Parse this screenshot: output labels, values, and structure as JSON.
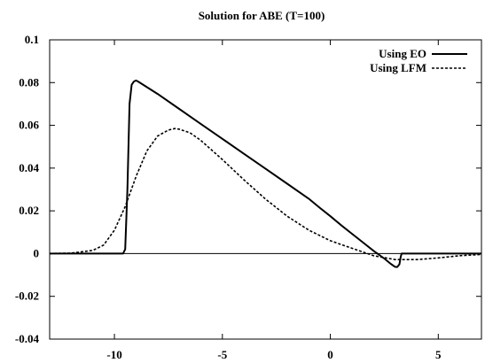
{
  "chart_data": {
    "type": "line",
    "title": "Solution for ABE (T=100)",
    "xlabel": "",
    "ylabel": "",
    "xlim": [
      -13,
      7
    ],
    "ylim": [
      -0.04,
      0.1
    ],
    "grid": false,
    "legend_position": "top-right",
    "x_ticks": [
      -10,
      -5,
      0,
      5
    ],
    "x_tick_labels": [
      "-10",
      "-5",
      "0",
      "5"
    ],
    "y_ticks": [
      -0.04,
      -0.02,
      0,
      0.02,
      0.04,
      0.06,
      0.08,
      0.1
    ],
    "y_tick_labels": [
      "-0.04",
      "-0.02",
      "0",
      "0.02",
      "0.04",
      "0.06",
      "0.08",
      "0.1"
    ],
    "zero_line": true,
    "series": [
      {
        "name": "Using EO",
        "style": "solid",
        "x": [
          -13,
          -9.6,
          -9.5,
          -9.4,
          -9.3,
          -9.2,
          -9.1,
          -9.0,
          -8.9,
          -8.0,
          -7.0,
          -6.0,
          -5.0,
          -4.0,
          -3.0,
          -2.0,
          -1.0,
          -0.5,
          0.0,
          0.5,
          1.0,
          1.5,
          2.0,
          2.5,
          2.8,
          3.0,
          3.1,
          3.2,
          3.25,
          3.3,
          3.5,
          5.0,
          7.0
        ],
        "y": [
          0.0,
          0.0,
          0.002,
          0.03,
          0.07,
          0.079,
          0.0805,
          0.081,
          0.0805,
          0.0747,
          0.0677,
          0.0607,
          0.0537,
          0.0467,
          0.0397,
          0.0327,
          0.0257,
          0.0215,
          0.0175,
          0.0133,
          0.0093,
          0.0053,
          0.0013,
          -0.0023,
          -0.0048,
          -0.0062,
          -0.0063,
          -0.005,
          -0.002,
          0.0,
          0.0,
          0.0,
          0.0
        ]
      },
      {
        "name": "Using LFM",
        "style": "dashed",
        "x": [
          -13,
          -12,
          -11,
          -10.5,
          -10,
          -9.5,
          -9,
          -8.5,
          -8,
          -7.5,
          -7.2,
          -7,
          -6.5,
          -6,
          -5,
          -4,
          -3,
          -2,
          -1,
          0,
          1,
          2,
          3,
          4,
          5,
          6,
          7
        ],
        "y": [
          0.0,
          0.0002,
          0.0015,
          0.004,
          0.011,
          0.022,
          0.036,
          0.048,
          0.055,
          0.0578,
          0.0585,
          0.0582,
          0.0565,
          0.053,
          0.044,
          0.0345,
          0.0255,
          0.0175,
          0.011,
          0.006,
          0.0025,
          -0.001,
          -0.0028,
          -0.0028,
          -0.002,
          -0.001,
          -0.0004
        ]
      }
    ]
  }
}
